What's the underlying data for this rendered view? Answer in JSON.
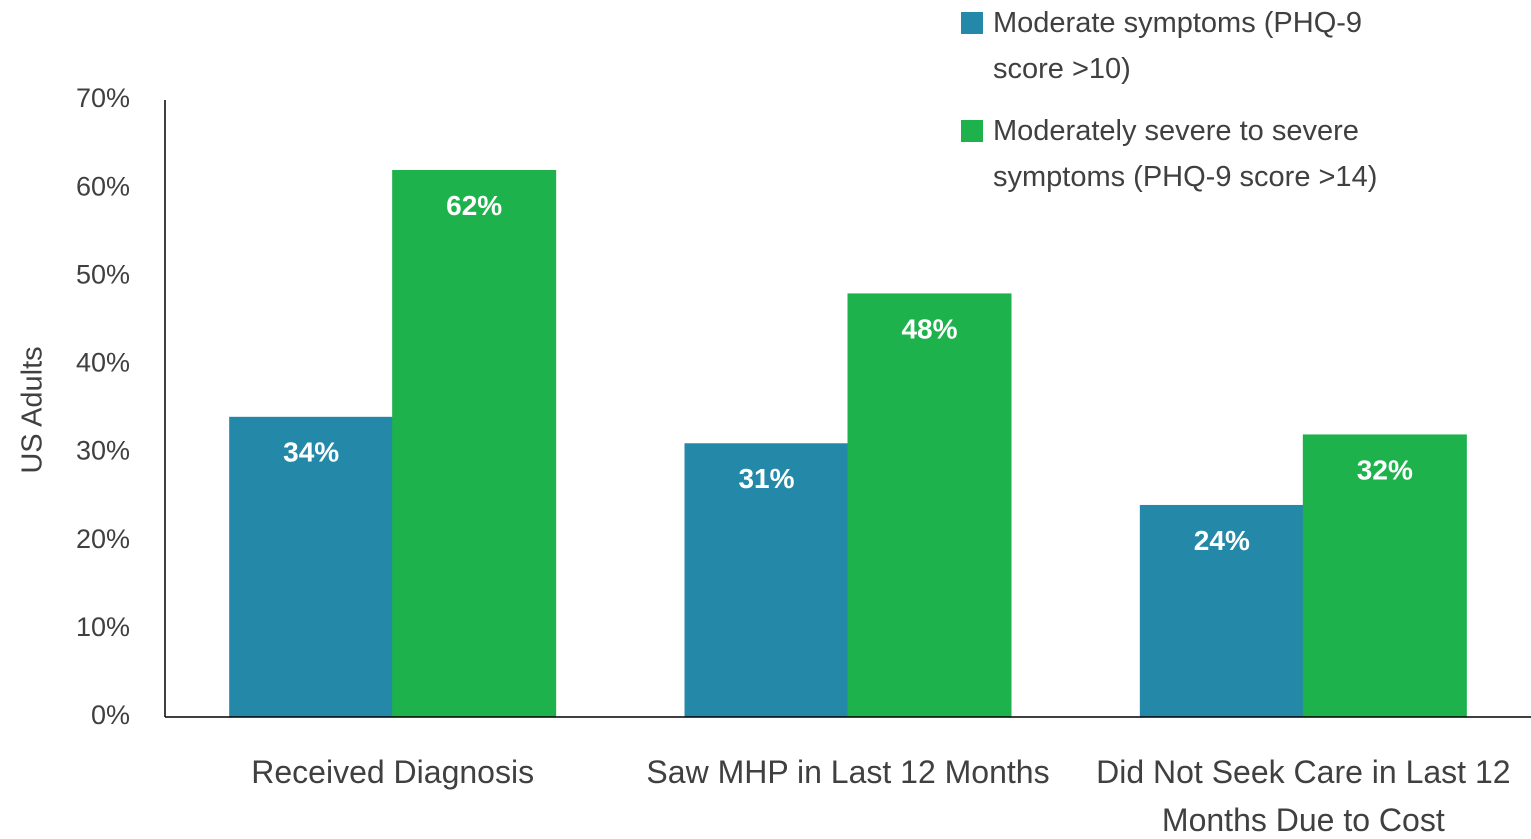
{
  "chart_data": {
    "type": "bar",
    "y_label": "US Adults",
    "categories": [
      "Received Diagnosis",
      "Saw MHP in Last 12 Months",
      "Did Not Seek Care in Last 12 Months Due to Cost"
    ],
    "series": [
      {
        "name": "Moderate symptoms (PHQ-9 score >10)",
        "color": "#2489a8",
        "values": [
          34,
          31,
          24
        ],
        "value_labels": [
          "34%",
          "31%",
          "24%"
        ]
      },
      {
        "name": "Moderately severe to severe symptoms (PHQ-9 score >14)",
        "color": "#1db24b",
        "values": [
          62,
          48,
          32
        ],
        "value_labels": [
          "62%",
          "48%",
          "32%"
        ]
      }
    ],
    "ylim": [
      0,
      70
    ],
    "yticks": [
      {
        "value": 0,
        "label": "0%"
      },
      {
        "value": 10,
        "label": "10%"
      },
      {
        "value": 20,
        "label": "20%"
      },
      {
        "value": 30,
        "label": "30%"
      },
      {
        "value": 40,
        "label": "40%"
      },
      {
        "value": 50,
        "label": "50%"
      },
      {
        "value": 60,
        "label": "60%"
      },
      {
        "value": 70,
        "label": "70%"
      }
    ],
    "grid": false,
    "legend": "top-right"
  }
}
